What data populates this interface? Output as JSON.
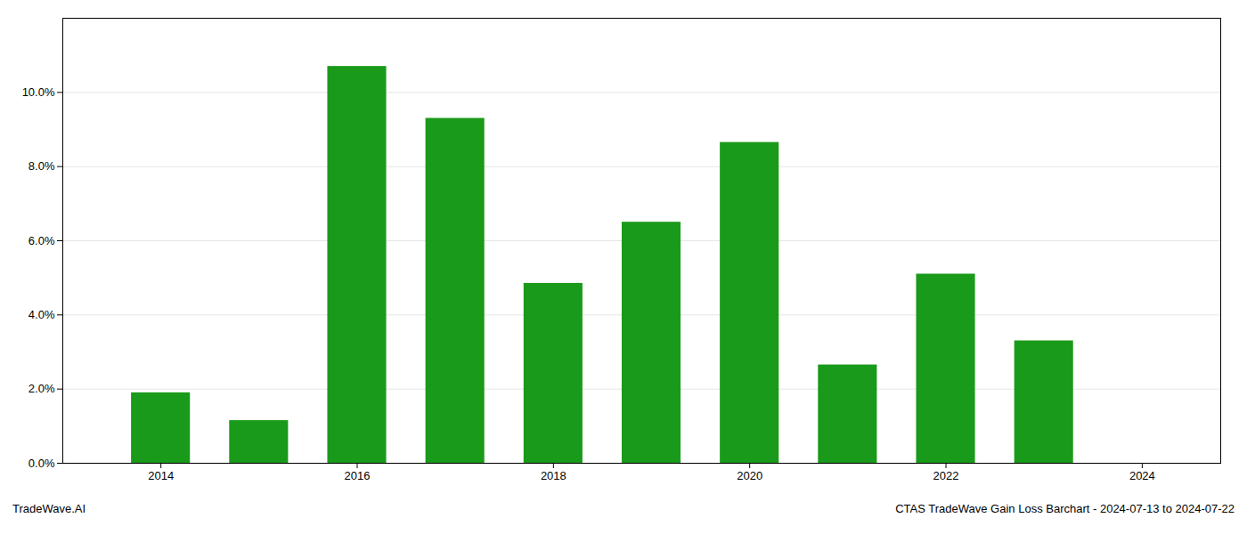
{
  "chart_data": {
    "type": "bar",
    "x": [
      2014,
      2015,
      2016,
      2017,
      2018,
      2019,
      2020,
      2021,
      2022,
      2023
    ],
    "values": [
      0.019,
      0.0115,
      0.107,
      0.093,
      0.0485,
      0.065,
      0.0865,
      0.0265,
      0.051,
      0.033
    ],
    "color": "#1a9a1a",
    "xlim": [
      2013.0,
      2024.8
    ],
    "xticks": [
      2014,
      2016,
      2018,
      2020,
      2022,
      2024
    ],
    "ylim": [
      0,
      0.12
    ],
    "yticks": [
      {
        "value": 0.0,
        "label": "0.0%"
      },
      {
        "value": 0.02,
        "label": "2.0%"
      },
      {
        "value": 0.04,
        "label": "4.0%"
      },
      {
        "value": 0.06,
        "label": "6.0%"
      },
      {
        "value": 0.08,
        "label": "8.0%"
      },
      {
        "value": 0.1,
        "label": "10.0%"
      }
    ],
    "grid": true,
    "annotations": [
      "TradeWave.AI",
      "CTAS TradeWave Gain Loss Barchart - 2024-07-13 to 2024-07-22"
    ]
  }
}
